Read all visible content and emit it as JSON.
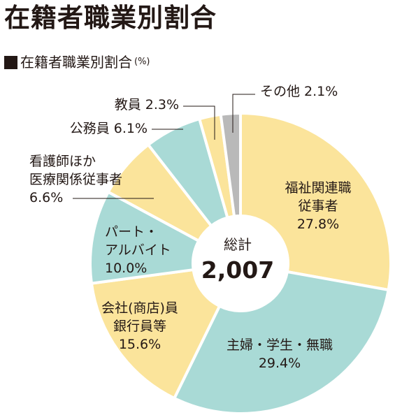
{
  "page_title": "在籍者職業別割合",
  "subtitle": "在籍者職業別割合",
  "subtitle_unit": "(%)",
  "subtitle_icon": "square-icon",
  "chart_data": {
    "type": "pie",
    "style": "donut",
    "total_label": "総計",
    "total_value": "2,007",
    "start": "top, clockwise",
    "slices": [
      {
        "name": "福祉関連職従事者",
        "label_lines": [
          "福祉関連職",
          "従事者"
        ],
        "percent_text": "27.8%",
        "value": 27.8,
        "color": "#fbe49b"
      },
      {
        "name": "主婦・学生・無職",
        "label_lines": [
          "主婦・学生・無職"
        ],
        "percent_text": "29.4%",
        "value": 29.4,
        "color": "#a9dad6"
      },
      {
        "name": "会社(商店)員銀行員等",
        "label_lines": [
          "会社(商店)員",
          "銀行員等"
        ],
        "percent_text": "15.6%",
        "value": 15.6,
        "color": "#fbe49b"
      },
      {
        "name": "パート・アルバイト",
        "label_lines": [
          "パート・",
          "アルバイト"
        ],
        "percent_text": "10.0%",
        "value": 10.0,
        "color": "#a9dad6"
      },
      {
        "name": "看護師ほか医療関係従事者",
        "label_lines": [
          "看護師ほか",
          "医療関係従事者"
        ],
        "percent_text": "6.6%",
        "value": 6.6,
        "color": "#fbe49b"
      },
      {
        "name": "公務員",
        "label_lines": [
          "公務員 6.1%"
        ],
        "percent_text": "",
        "value": 6.1,
        "color": "#a9dad6"
      },
      {
        "name": "教員",
        "label_lines": [
          "教員 2.3%"
        ],
        "percent_text": "",
        "value": 2.3,
        "color": "#fbe49b"
      },
      {
        "name": "その他",
        "label_lines": [
          "その他 2.1%"
        ],
        "percent_text": "",
        "value": 2.1,
        "color": "#b9b9b9"
      }
    ]
  }
}
